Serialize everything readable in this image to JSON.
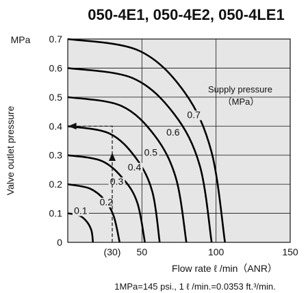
{
  "chart_data": {
    "type": "line",
    "title": "050-4E1, 050-4E2, 050-4LE1",
    "ylabel": "Valve outlet pressure",
    "yunit": "MPa",
    "xlabel": "Flow rate  ℓ /min（ANR）",
    "xlim": [
      0,
      150
    ],
    "ylim": [
      0,
      0.7
    ],
    "x_ticks": [
      "0",
      "50",
      "100",
      "150"
    ],
    "x_ticks_values": [
      0,
      50,
      100,
      150
    ],
    "y_ticks": [
      "0.1",
      "0.2",
      "0.3",
      "0.4",
      "0.5",
      "0.6",
      "0.7"
    ],
    "y_ticks_values": [
      0.1,
      0.2,
      0.3,
      0.4,
      0.5,
      0.6,
      0.7
    ],
    "example_tick": "(30)",
    "legend_title_line1": "Supply pressure",
    "legend_title_line2": "（MPa）",
    "series": [
      {
        "name": "0.1",
        "max_flow": 17,
        "label_at": [
          8.7,
          0.1
        ],
        "points": [
          [
            0,
            0.1
          ],
          [
            8,
            0.092
          ],
          [
            13,
            0.07
          ],
          [
            16,
            0.04
          ],
          [
            17,
            0.0
          ]
        ]
      },
      {
        "name": "0.2",
        "max_flow": 35,
        "label_at": [
          26,
          0.13
        ],
        "points": [
          [
            0,
            0.2
          ],
          [
            15,
            0.185
          ],
          [
            25,
            0.145
          ],
          [
            31,
            0.09
          ],
          [
            35,
            0.0
          ]
        ]
      },
      {
        "name": "0.3",
        "max_flow": 52,
        "label_at": [
          33,
          0.2
        ],
        "points": [
          [
            0,
            0.3
          ],
          [
            23,
            0.28
          ],
          [
            38,
            0.215
          ],
          [
            47,
            0.135
          ],
          [
            52,
            0.0
          ]
        ]
      },
      {
        "name": "0.4",
        "max_flow": 62,
        "label_at": [
          45,
          0.25
        ],
        "points": [
          [
            0,
            0.4
          ],
          [
            28,
            0.375
          ],
          [
            46,
            0.29
          ],
          [
            57,
            0.175
          ],
          [
            62,
            0.0
          ]
        ]
      },
      {
        "name": "0.5",
        "max_flow": 80,
        "label_at": [
          56,
          0.3
        ],
        "points": [
          [
            0,
            0.5
          ],
          [
            36,
            0.47
          ],
          [
            59,
            0.365
          ],
          [
            73,
            0.22
          ],
          [
            80,
            0.0
          ]
        ]
      },
      {
        "name": "0.6",
        "max_flow": 97,
        "label_at": [
          71,
          0.37
        ],
        "points": [
          [
            0,
            0.6
          ],
          [
            44,
            0.565
          ],
          [
            72,
            0.44
          ],
          [
            89,
            0.265
          ],
          [
            97,
            0.0
          ]
        ]
      },
      {
        "name": "0.7",
        "max_flow": 106,
        "label_at": [
          85,
          0.43
        ],
        "points": [
          [
            0,
            0.7
          ],
          [
            48,
            0.66
          ],
          [
            79,
            0.515
          ],
          [
            97,
            0.31
          ],
          [
            106,
            0.0
          ]
        ]
      }
    ],
    "example_path": [
      [
        30,
        0
      ],
      [
        30,
        0.4
      ],
      [
        0,
        0.4
      ]
    ],
    "grid": true,
    "footnote": "1MPa=145 psi., 1 ℓ /min.=0.0353 ft.³/min."
  }
}
